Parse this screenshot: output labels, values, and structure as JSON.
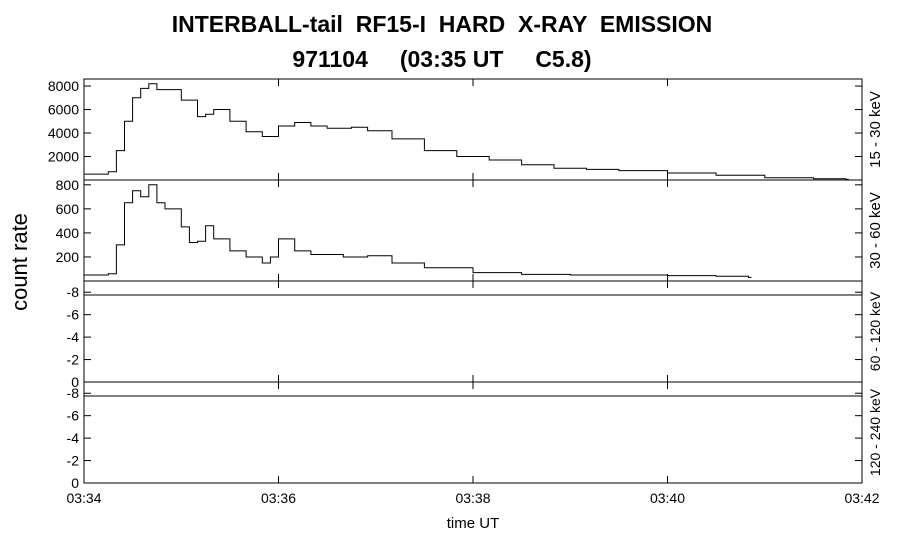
{
  "chart_data": {
    "type": "line",
    "title": "INTERBALL-tail  RF15-I  HARD  X-RAY  EMISSION",
    "subtitle": "971104     (03:35 UT     C5.8)",
    "xlabel": "time UT",
    "ylabel": "count rate",
    "x_ticks": [
      "03:34",
      "03:36",
      "03:38",
      "03:40",
      "03:42"
    ],
    "xlim": [
      "03:34",
      "03:42"
    ],
    "panels": [
      {
        "name": "15 - 30 keV",
        "ylim": [
          0,
          8600
        ],
        "yticks": [
          "2000",
          "4000",
          "6000",
          "8000"
        ],
        "series": [
          {
            "x": [
              "03:34:00",
              "03:34:15",
              "03:34:20",
              "03:34:25",
              "03:34:30",
              "03:34:35",
              "03:34:40",
              "03:34:45",
              "03:35:00",
              "03:35:10",
              "03:35:15",
              "03:35:20",
              "03:35:30",
              "03:35:40",
              "03:35:50",
              "03:36:00",
              "03:36:10",
              "03:36:20",
              "03:36:30",
              "03:36:45",
              "03:36:55",
              "03:37:10",
              "03:37:30",
              "03:37:50",
              "03:38:10",
              "03:38:30",
              "03:38:50",
              "03:39:10",
              "03:39:30",
              "03:40:00",
              "03:40:30",
              "03:41:00",
              "03:41:30",
              "03:41:50"
            ],
            "values": [
              500,
              700,
              2500,
              5000,
              7000,
              7800,
              8200,
              7700,
              6800,
              5400,
              5600,
              6000,
              5000,
              4100,
              3700,
              4600,
              4900,
              4600,
              4400,
              4500,
              4200,
              3500,
              2500,
              2000,
              1700,
              1300,
              1000,
              900,
              800,
              600,
              400,
              200,
              100,
              50
            ]
          }
        ]
      },
      {
        "name": "30 - 60 keV",
        "ylim": [
          0,
          840
        ],
        "yticks": [
          "200",
          "400",
          "600",
          "800"
        ],
        "series": [
          {
            "x": [
              "03:34:00",
              "03:34:15",
              "03:34:20",
              "03:34:25",
              "03:34:30",
              "03:34:35",
              "03:34:40",
              "03:34:45",
              "03:34:50",
              "03:35:00",
              "03:35:05",
              "03:35:10",
              "03:35:15",
              "03:35:20",
              "03:35:30",
              "03:35:40",
              "03:35:50",
              "03:35:55",
              "03:36:00",
              "03:36:10",
              "03:36:20",
              "03:36:40",
              "03:36:55",
              "03:37:10",
              "03:37:30",
              "03:38:00",
              "03:38:30",
              "03:39:00",
              "03:39:30",
              "03:40:00",
              "03:40:30",
              "03:40:50"
            ],
            "values": [
              50,
              60,
              300,
              650,
              750,
              700,
              800,
              650,
              600,
              450,
              320,
              330,
              460,
              350,
              250,
              200,
              150,
              200,
              350,
              250,
              220,
              200,
              210,
              150,
              110,
              70,
              55,
              50,
              50,
              45,
              40,
              30
            ]
          }
        ]
      },
      {
        "name": "60 - 120 keV",
        "ylim": [
          0,
          -9
        ],
        "yticks": [
          "0",
          "-2",
          "-4",
          "-6",
          "-8"
        ],
        "series": [
          {
            "x": [],
            "values": []
          }
        ]
      },
      {
        "name": "120 - 240 keV",
        "ylim": [
          0,
          -9
        ],
        "yticks": [
          "0",
          "-2",
          "-4",
          "-6",
          "-8"
        ],
        "series": [
          {
            "x": [],
            "values": []
          }
        ]
      }
    ],
    "grid": false,
    "legend": "none"
  }
}
